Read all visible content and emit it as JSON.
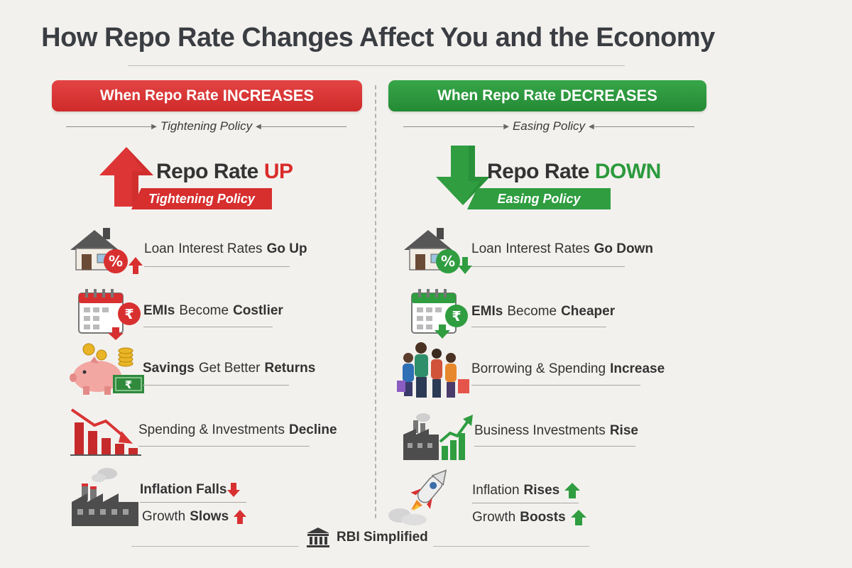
{
  "title": "How Repo Rate Changes Affect You and the Economy",
  "colors": {
    "red": "#d92b2b",
    "green": "#2b9a3c",
    "background": "#f3f1ee",
    "text": "#2f2f2f"
  },
  "left": {
    "banner_prefix": "When Repo Rate",
    "banner_strong": "INCREASES",
    "policy_label": "Tightening Policy",
    "heading_prefix": "Repo Rate",
    "heading_strong": "UP",
    "ribbon": "Tightening Policy",
    "items": [
      {
        "icon": "house-percent-up-icon",
        "parts": [
          "Loan",
          "Interest Rates",
          "Go Up"
        ]
      },
      {
        "icon": "calendar-rupee-down-icon",
        "parts": [
          "EMIs",
          "Become",
          "Costlier"
        ]
      },
      {
        "icon": "piggy-bank-coins-icon",
        "parts": [
          "Savings",
          "Get Better",
          "Returns"
        ]
      },
      {
        "icon": "declining-bars-icon",
        "parts": [
          "Spending & Investments",
          "Decline"
        ]
      },
      {
        "icon": "factory-icon",
        "parts": [
          "Inflation Falls"
        ]
      },
      {
        "icon": "factory-icon",
        "parts": [
          "Growth",
          "Slows"
        ]
      }
    ]
  },
  "right": {
    "banner_prefix": "When Repo Rate",
    "banner_strong": "DECREASES",
    "policy_label": "Easing Policy",
    "heading_prefix": "Repo Rate",
    "heading_strong": "DOWN",
    "ribbon": "Easing Policy",
    "items": [
      {
        "icon": "house-percent-down-icon",
        "parts": [
          "Loan",
          "Interest Rates",
          "Go Down"
        ]
      },
      {
        "icon": "calendar-rupee-down-icon",
        "parts": [
          "EMIs",
          "Become",
          "Cheaper"
        ]
      },
      {
        "icon": "shopping-people-icon",
        "parts": [
          "Borrowing & Spending",
          "Increase"
        ]
      },
      {
        "icon": "factory-growth-icon",
        "parts": [
          "Business Investments",
          "Rise"
        ]
      },
      {
        "icon": "rocket-icon",
        "parts": [
          "Inflation",
          "Rises"
        ]
      },
      {
        "icon": "rocket-icon",
        "parts": [
          "Growth",
          "Boosts"
        ]
      }
    ]
  },
  "footer": "RBI Simplified"
}
